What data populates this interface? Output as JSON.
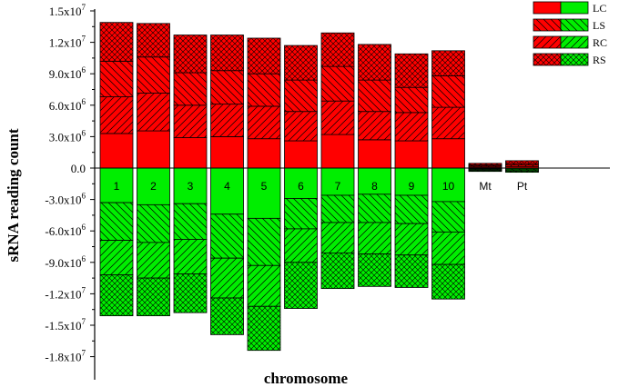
{
  "chart_data": {
    "type": "bar",
    "xlabel": "chromosome",
    "ylabel": "sRNA reading count",
    "ylim": [
      -19500000,
      15000000
    ],
    "yticks": [
      {
        "value": 15000000,
        "mant": "1.5x10",
        "exp": "7"
      },
      {
        "value": 12000000,
        "mant": "1.2x10",
        "exp": "7"
      },
      {
        "value": 9000000,
        "mant": "9.0x10",
        "exp": "6"
      },
      {
        "value": 6000000,
        "mant": "6.0x10",
        "exp": "6"
      },
      {
        "value": 3000000,
        "mant": "3.0x10",
        "exp": "6"
      },
      {
        "value": 0,
        "mant": "0.0",
        "exp": ""
      },
      {
        "value": -3000000,
        "mant": "-3.0x10",
        "exp": "6"
      },
      {
        "value": -6000000,
        "mant": "-6.0x10",
        "exp": "6"
      },
      {
        "value": -9000000,
        "mant": "-9.0x10",
        "exp": "6"
      },
      {
        "value": -12000000,
        "mant": "-1.2x10",
        "exp": "7"
      },
      {
        "value": -15000000,
        "mant": "-1.5x10",
        "exp": "7"
      },
      {
        "value": -18000000,
        "mant": "-1.8x10",
        "exp": "7"
      }
    ],
    "categories": [
      "1",
      "2",
      "3",
      "4",
      "5",
      "6",
      "7",
      "8",
      "9",
      "10",
      "Mt",
      "Pt"
    ],
    "legend": [
      "LC",
      "LS",
      "RC",
      "RS"
    ],
    "legend_position": "top-right",
    "grid": false,
    "red_color": "#ff0000",
    "green_color": "#00ee00",
    "series": [
      {
        "name": "LC",
        "side": "red",
        "pattern": "solid",
        "values": [
          3300000,
          3550000,
          2900000,
          3000000,
          2800000,
          2600000,
          3200000,
          2700000,
          2600000,
          2800000,
          100000,
          150000
        ]
      },
      {
        "name": "RC",
        "side": "red",
        "pattern": "hatch-diag",
        "values": [
          3500000,
          3600000,
          3100000,
          3100000,
          3100000,
          2800000,
          3200000,
          2700000,
          2700000,
          3000000,
          100000,
          150000
        ]
      },
      {
        "name": "LS",
        "side": "red",
        "pattern": "hatch-back",
        "values": [
          3400000,
          3450000,
          3100000,
          3200000,
          3100000,
          3000000,
          3300000,
          3000000,
          2400000,
          3000000,
          100000,
          150000
        ]
      },
      {
        "name": "RS",
        "side": "red",
        "pattern": "crosshatch",
        "values": [
          3700000,
          3200000,
          3600000,
          3400000,
          3400000,
          3300000,
          3200000,
          3400000,
          3200000,
          2400000,
          150000,
          250000
        ]
      },
      {
        "name": "LC",
        "side": "green",
        "pattern": "solid",
        "values": [
          3300000,
          3500000,
          3400000,
          4400000,
          4800000,
          2900000,
          2600000,
          2500000,
          2600000,
          3200000,
          80000,
          100000
        ]
      },
      {
        "name": "LS",
        "side": "green",
        "pattern": "hatch-back",
        "values": [
          3600000,
          3600000,
          3400000,
          4200000,
          4500000,
          2900000,
          2600000,
          2700000,
          2700000,
          2900000,
          80000,
          100000
        ]
      },
      {
        "name": "RC",
        "side": "green",
        "pattern": "hatch-diag",
        "values": [
          3300000,
          3400000,
          3300000,
          3800000,
          3900000,
          3200000,
          2900000,
          3000000,
          3000000,
          3100000,
          80000,
          100000
        ]
      },
      {
        "name": "RS",
        "side": "green",
        "pattern": "crosshatch",
        "values": [
          3900000,
          3600000,
          3700000,
          3500000,
          4200000,
          4400000,
          3400000,
          3100000,
          3100000,
          3300000,
          80000,
          100000
        ]
      }
    ]
  }
}
